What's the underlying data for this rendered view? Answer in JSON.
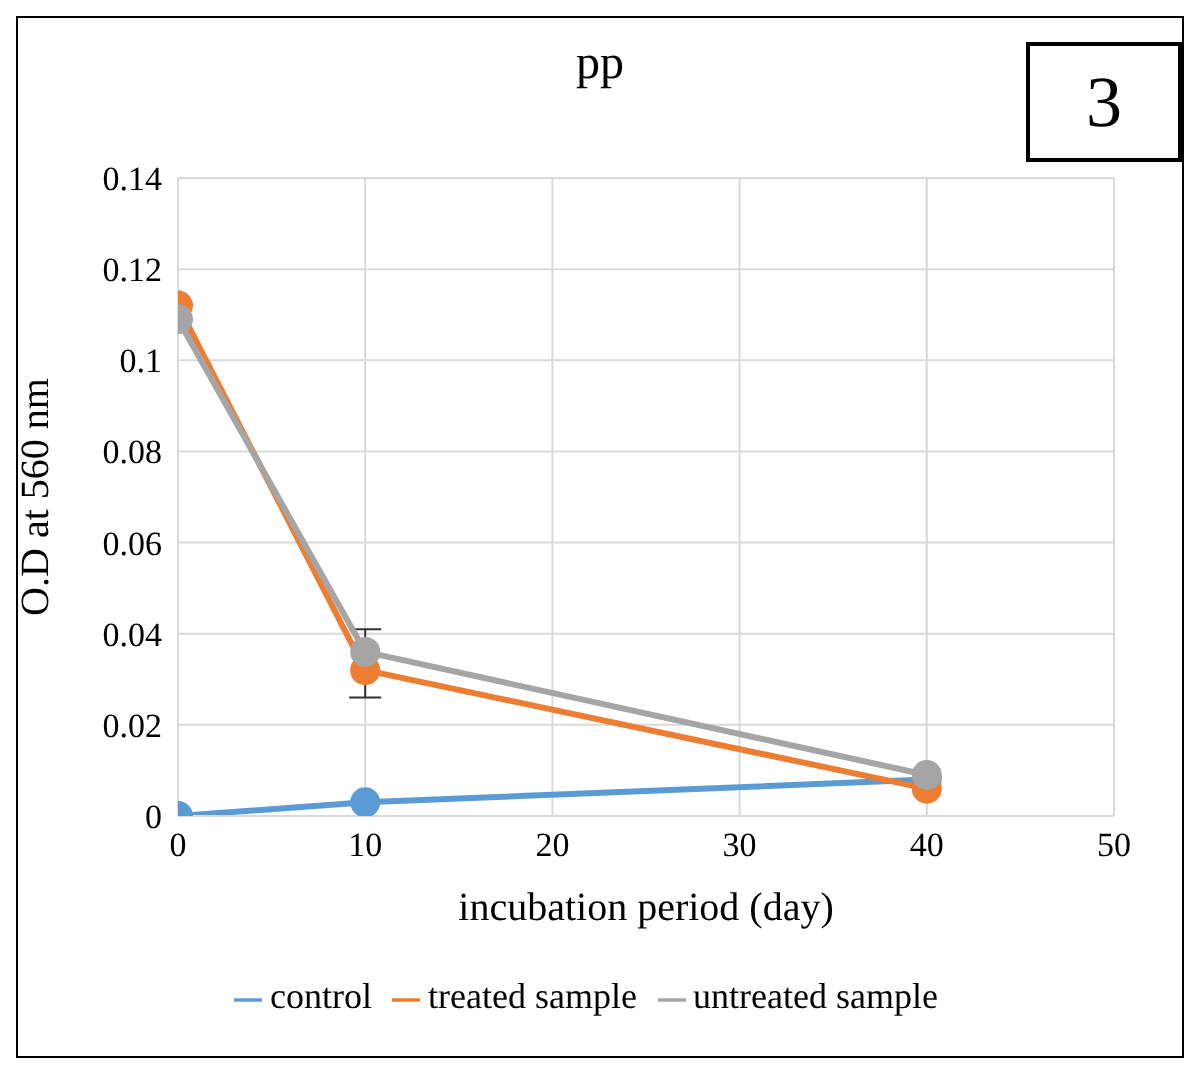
{
  "chart_data": {
    "type": "line",
    "title": "pp",
    "xlabel": "incubation period (day)",
    "ylabel": "O.D at 560 nm",
    "annotations": [
      "3"
    ],
    "x": [
      0,
      10,
      40
    ],
    "series": [
      {
        "name": "control",
        "color": "#5b9bd5",
        "values": [
          0,
          0.003,
          0.008
        ]
      },
      {
        "name": "treated sample",
        "color": "#ed7d31",
        "values": [
          0.112,
          0.032,
          0.006
        ]
      },
      {
        "name": "untreated sample",
        "color": "#a5a5a5",
        "values": [
          0.109,
          0.036,
          0.009
        ],
        "errors": [
          null,
          [
            0.026,
            0.041
          ],
          null
        ]
      }
    ],
    "xlim": [
      0,
      50
    ],
    "xticks": [
      0,
      10,
      20,
      30,
      40,
      50
    ],
    "ylim": [
      0,
      0.14
    ],
    "yticks": [
      0,
      0.02,
      0.04,
      0.06,
      0.08,
      0.1,
      0.12,
      0.14
    ],
    "grid": true,
    "legend": "bottom",
    "marker": "circle",
    "line_style": "solid"
  }
}
